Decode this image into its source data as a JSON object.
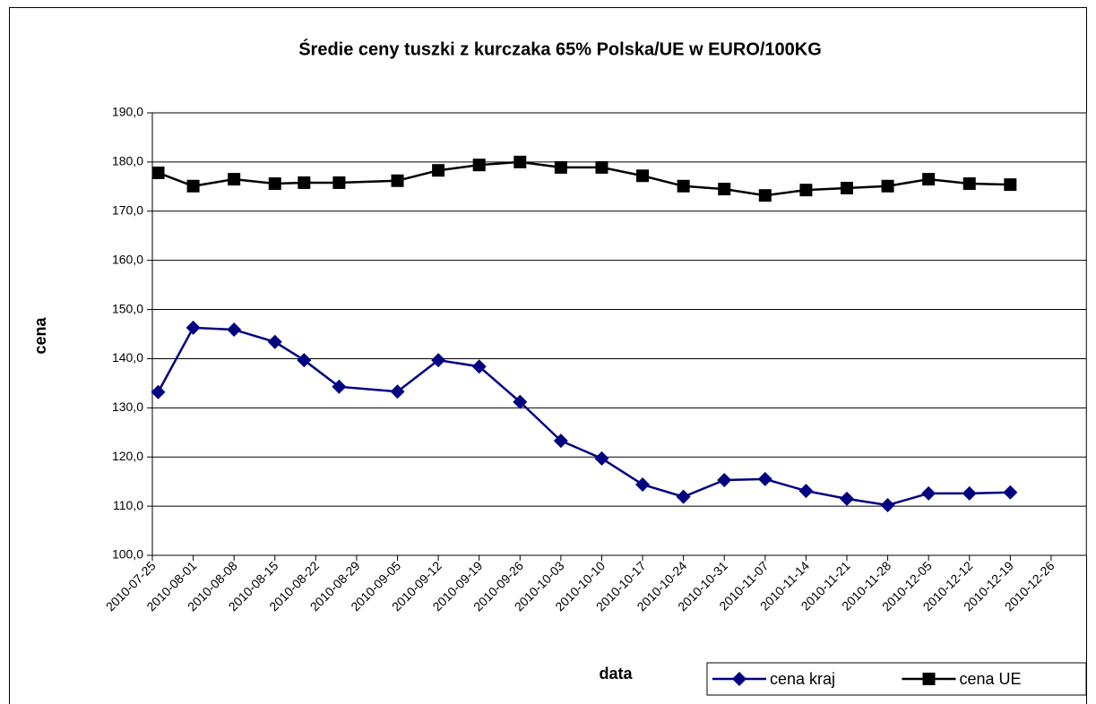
{
  "chart_data": {
    "type": "line",
    "title": "Średie ceny tuszki z kurczaka 65% Polska/UE w EURO/100KG",
    "x_label": "data",
    "y_label": "cena",
    "x": [
      "2010-07-26",
      "2010-08-01",
      "2010-08-08",
      "2010-08-15",
      "2010-08-20",
      "2010-08-26",
      "2010-09-05",
      "2010-09-12",
      "2010-09-19",
      "2010-09-26",
      "2010-10-03",
      "2010-10-10",
      "2010-10-17",
      "2010-10-24",
      "2010-10-31",
      "2010-11-07",
      "2010-11-14",
      "2010-11-21",
      "2010-11-28",
      "2010-12-05",
      "2010-12-12",
      "2010-12-19"
    ],
    "xlim": [
      "2010-07-25",
      "2011-01-01"
    ],
    "xticks": [
      "2010-07-25",
      "2010-08-01",
      "2010-08-08",
      "2010-08-15",
      "2010-08-22",
      "2010-08-29",
      "2010-09-05",
      "2010-09-12",
      "2010-09-19",
      "2010-09-26",
      "2010-10-03",
      "2010-10-10",
      "2010-10-17",
      "2010-10-24",
      "2010-10-31",
      "2010-11-07",
      "2010-11-14",
      "2010-11-21",
      "2010-11-28",
      "2010-12-05",
      "2010-12-12",
      "2010-12-19",
      "2010-12-26"
    ],
    "ylim": [
      100,
      190
    ],
    "yticks": [
      {
        "value": 100,
        "label": "100,0"
      },
      {
        "value": 110,
        "label": "110,0"
      },
      {
        "value": 120,
        "label": "120,0"
      },
      {
        "value": 130,
        "label": "130,0"
      },
      {
        "value": 140,
        "label": "140,0"
      },
      {
        "value": 150,
        "label": "150,0"
      },
      {
        "value": 160,
        "label": "160,0"
      },
      {
        "value": 170,
        "label": "170,0"
      },
      {
        "value": 180,
        "label": "180,0"
      },
      {
        "value": 190,
        "label": "190,0"
      }
    ],
    "grid": true,
    "legend": "bottom-right",
    "series": [
      {
        "name": "cena kraj",
        "color": "#000080",
        "marker": "diamond",
        "values": [
          133.2,
          146.3,
          145.9,
          143.4,
          139.7,
          134.3,
          133.3,
          139.7,
          138.4,
          131.2,
          123.3,
          119.7,
          114.4,
          111.9,
          115.3,
          115.5,
          113.1,
          111.5,
          110.2,
          112.6,
          112.6,
          112.8
        ]
      },
      {
        "name": "cena UE",
        "color": "#000000",
        "marker": "square",
        "values": [
          177.8,
          175.1,
          176.5,
          175.6,
          175.8,
          175.8,
          176.2,
          178.3,
          179.4,
          180.0,
          178.9,
          178.9,
          177.2,
          175.1,
          174.5,
          173.2,
          174.3,
          174.7,
          175.1,
          176.5,
          175.6,
          175.4
        ]
      }
    ]
  }
}
